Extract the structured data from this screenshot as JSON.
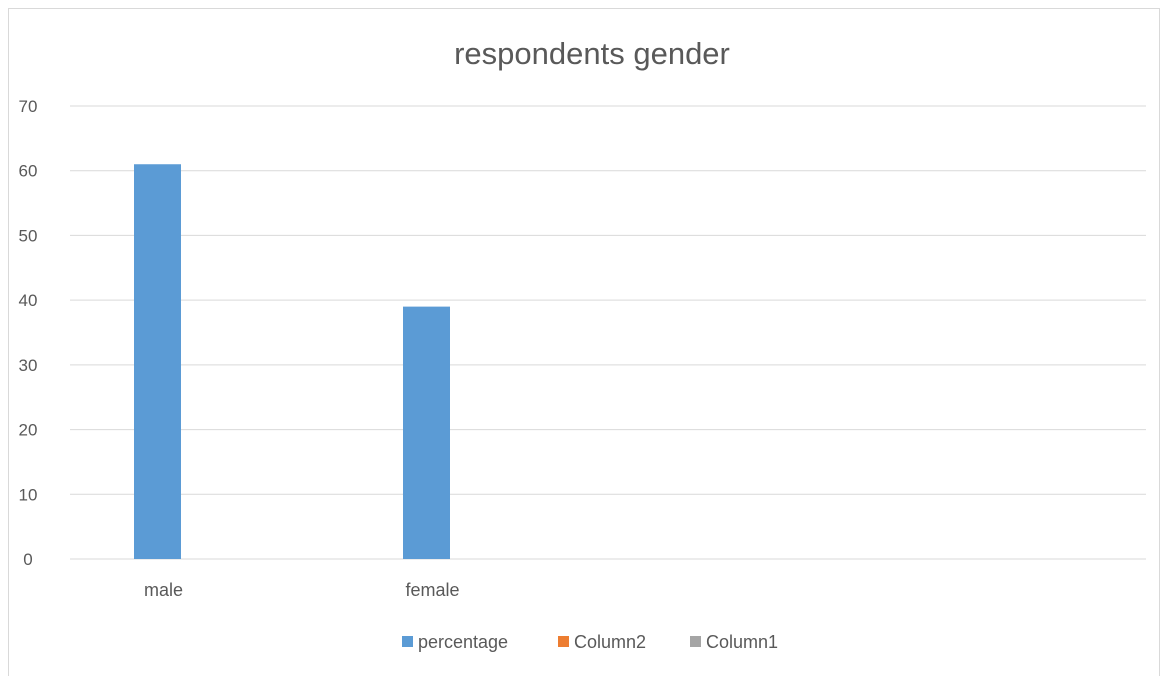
{
  "chart_data": {
    "type": "bar",
    "title": "respondents gender",
    "categories": [
      "male",
      "female",
      "",
      ""
    ],
    "series": [
      {
        "name": "percentage",
        "values": [
          61,
          39,
          null,
          null
        ],
        "color": "#5b9bd5"
      },
      {
        "name": "Column2",
        "values": [
          null,
          null,
          null,
          null
        ],
        "color": "#ed7d31"
      },
      {
        "name": "Column1",
        "values": [
          null,
          null,
          null,
          null
        ],
        "color": "#a5a5a5"
      }
    ],
    "ylim": [
      0,
      70
    ],
    "yticks": [
      0,
      10,
      20,
      30,
      40,
      50,
      60,
      70
    ],
    "grid": true,
    "legend": "bottom",
    "gridline_color": "#d9d9d9",
    "text_color": "#595959"
  }
}
